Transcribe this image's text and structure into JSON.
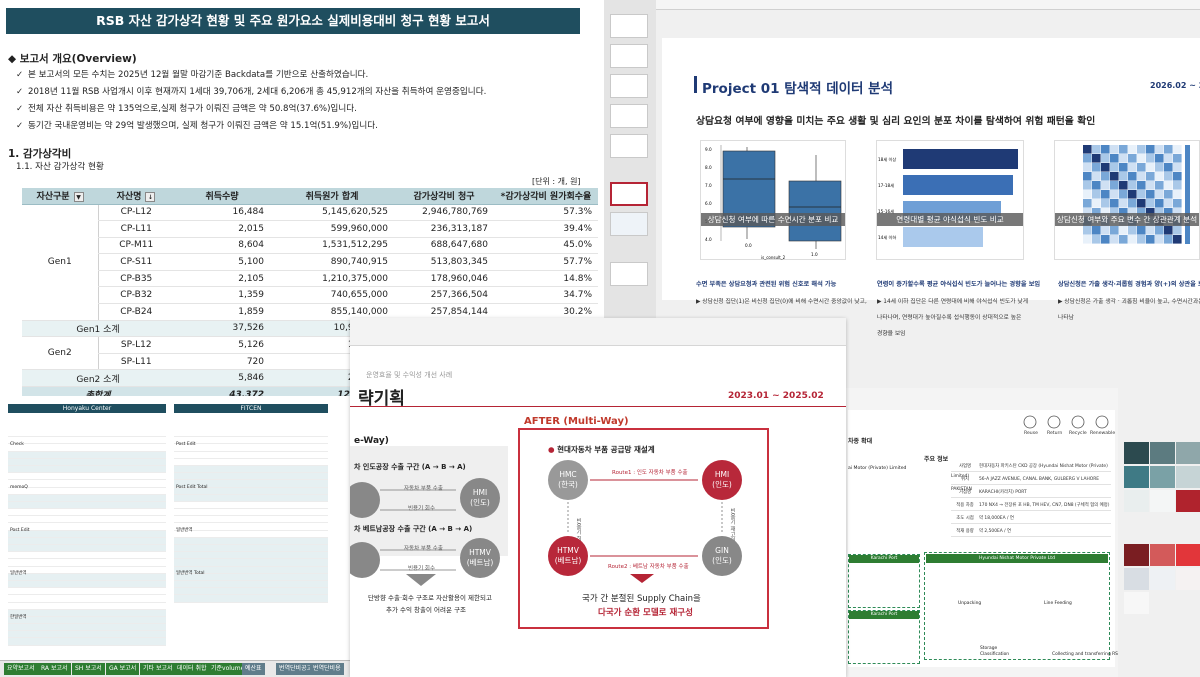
{
  "report": {
    "title": "RSB 자산 감가상각 현황 및 주요 원가요소 실제비용대비 청구 현황 보고서",
    "overview_heading": "◆ 보고서 개요(Overview)",
    "overview_lines": [
      "본 보고서의 모든 수치는 2025년 12월 월말 마감기준 Backdata를 기반으로 산출하였습니다.",
      "2018년 11월 RSB 사업개시 이후 현재까지 1세대 39,706개, 2세대 6,206개 총 45,912개의 자산을 취득하여 운영중입니다.",
      "전체 자산 취득비용은 약 135억으로,실제 청구가 이뤄진 금액은 약 50.8억(37.6%)입니다.",
      "동기간 국내운영비는 약 29억 발생했으며, 실제 청구가 이뤄진 금액은 약 15.1억(51.9%)입니다."
    ],
    "section_heading": "1. 감가상각비",
    "subsection_heading": "1.1. 자산 감가상각 현황",
    "unit_note": "[단위 : 개, 원]",
    "table": {
      "headers": [
        "자산구분",
        "자산명",
        "취득수량",
        "취득원가 합계",
        "감가상각비 청구",
        "*감가상각비 원가회수율"
      ],
      "gen1_label": "Gen1",
      "gen1_rows": [
        [
          "CP-L12",
          "16,484",
          "5,145,620,525",
          "2,946,780,769",
          "57.3%"
        ],
        [
          "CP-L11",
          "2,015",
          "599,960,000",
          "236,313,187",
          "39.4%"
        ],
        [
          "CP-M11",
          "8,604",
          "1,531,512,295",
          "688,647,680",
          "45.0%"
        ],
        [
          "CP-S11",
          "5,100",
          "890,740,915",
          "513,803,345",
          "57.7%"
        ],
        [
          "CP-B35",
          "2,105",
          "1,210,375,000",
          "178,960,046",
          "14.8%"
        ],
        [
          "CP-B32",
          "1,359",
          "740,655,000",
          "257,366,504",
          "34.7%"
        ],
        [
          "CP-B24",
          "1,859",
          "855,140,000",
          "257,854,144",
          "30.2%"
        ]
      ],
      "gen1_subtotal": [
        "Gen1 소계",
        "37,526",
        "10,974,000,"
      ],
      "gen2_label": "Gen2",
      "gen2_rows": [
        [
          "SP-L12",
          "5,126",
          "1,777,69"
        ],
        [
          "SP-L11",
          "720",
          "244,80"
        ]
      ],
      "gen2_subtotal": [
        "Gen2 소계",
        "5,846",
        "2,022,49"
      ],
      "total": [
        "총합계",
        "43,372",
        "12,996,50"
      ]
    }
  },
  "mini_sheet": {
    "left_title": "Honyaku Center",
    "right_title": "FITCEN",
    "left_groups": [
      "Check",
      "Check Total",
      "memoQ",
      "memoQ Total",
      "Post Edit",
      "Post Edit Total",
      "일반번역",
      "일반번역 Total",
      "한일번역",
      "한일번역 Total",
      "TOTAL"
    ],
    "right_groups": [
      "Post Edit",
      "Post Edit Total",
      "일반번역",
      "일반번역 Total",
      "TOTAL"
    ]
  },
  "sheet_tabs": [
    "요약보고서",
    "RA 보고서",
    "SH 보고서",
    "GA 보고서",
    "기타 보고서",
    "데이터 취합",
    "기준volume 추출",
    "예산표",
    "번역단비공고",
    "번역단비용"
  ],
  "slide1": {
    "title": "Project 01 탐색적 데이터 분석",
    "date": "2026.02 ~ 2026",
    "subtitle": "상담요청 여부에 영향을 미치는 주요 생활 및 심리 요인의 분포 차이를 탐색하여 위험 패턴을 확인",
    "card_captions": [
      "상담신청 여부에 따른 수면시간 분포 비교",
      "연령대별 평균 야식섭식 빈도 비교",
      "상담신청 여부와 주요 변수 간 상관관계 분석"
    ],
    "blue_notes": [
      "수면 부족은 상담요청과 관련된 위험 신호로 해석 가능",
      "연령이 증가할수록 평균 야식섭식 빈도가 늘어나는 경향을 보임",
      "상담신청은 가출 생각·괴롭힘 경험과 양(+)의 상관을 보임"
    ],
    "grey_notes": [
      "▶ 상담신청 집단(1)은 비신청 집단(0)에 비해 수면시간 중앙값이 낮고,",
      "▶ 14세 이하 집단은 다른 연령대에 비해 야식섭식 빈도가 낮게",
      "나타나며, 연령대가 높아질수록 섭식행동이 상대적으로 높은",
      "경향을 보임",
      "▶ 상담신청은 가출 생각 · 괴롭힘 비율이 높고, 수면시간과는 낮은 관련",
      "나타남"
    ],
    "chart1_ticks": [
      "9.0",
      "8.0",
      "7.0",
      "6.0",
      "5.0",
      "4.0"
    ],
    "chart1_xlabels": [
      "0.0",
      "1.0"
    ],
    "chart1_xtitle": "is_consult_2",
    "chart2_ticks": [
      "18세 이상",
      "17-18세",
      "15-16세",
      "14세 이하"
    ]
  },
  "slide2": {
    "crumb": "운영효율 및 수익성 개선 사례",
    "title": "략기획",
    "date": "2023.01 ~ 2025.02",
    "after_label": "AFTER (Multi-Way)",
    "section": "현대자동차 부품 공급망 재설계",
    "route1": "Route1 : 인도 자동차 부품 수출",
    "route2": "Route2 : 베트남 자동차 부품 수출",
    "nodes": {
      "hmc": [
        "HMC",
        "(한국)"
      ],
      "hmi": [
        "HMI",
        "(인도)"
      ],
      "htmv": [
        "HTMV",
        "(베트남)"
      ],
      "gin": [
        "GIN",
        "(인도)"
      ]
    },
    "return_label": "빈용기 회수",
    "return_label2": "빈용기 재고이관",
    "return_label3": "빈용기 회수",
    "conclusion_line1": "국가 간 분절된 Supply Chain을",
    "conclusion_line2": "다국가 순환 모델로 재구성",
    "left_head": "e-Way)",
    "left_h1": "차 인도공장 수출 구간 (A → B → A)",
    "left_h2": "차 베트남공장 수출 구간 (A → B → A)",
    "left_small1": "자동차 부품 수출",
    "left_small2": "빈용기 회수",
    "left_hmi": [
      "HMI",
      "(인도)"
    ],
    "left_htmv": [
      "HTMV",
      "(베트남)"
    ],
    "left_note1": "단방향 수출·회수 구조로 자산활용이 제한되고",
    "left_note2": "추가 수익 창출이 어려운 구조"
  },
  "slide3": {
    "icon_labels": [
      "Reuse",
      "Return",
      "Recycle",
      "Renewable"
    ],
    "heading": "차종 확대",
    "info_heading": "주요 정보",
    "company": "ai Motor (Private) Limited",
    "rows": [
      [
        "사업명",
        "현대자동차 파키스탄 CKD 공장 (Hyundai Nishat Motor (Private) Limited)"
      ],
      [
        "위치",
        "56-A JAZZ AVENUE, CANAL BANK, GULBERG V LAHORE PAKISTAN"
      ],
      [
        "거점명",
        "KARACHI(카라치) PORT"
      ],
      [
        "적용 차종",
        "170 NX4 → 전장류 포 HB, TM HEV, CN7, DN8 (구체적 협의 예정)"
      ],
      [
        "초도 시점",
        "약 18,000EA / 연"
      ],
      [
        "적재 용량",
        "약 2,500EA / 연"
      ]
    ],
    "flow_title": "Hyundai Nishat Motor Private Ltd",
    "port1": "Karachi Port",
    "port2": "Karachi Port",
    "steps": [
      "Unpacking",
      "Line Feeding",
      "Storage",
      "Classification",
      "Collecting and transferring RSB"
    ]
  },
  "palette": {
    "colors": [
      "#2c4a4f",
      "#5c7b80",
      "#8fa7aa",
      "#3f7a85",
      "#7aa1a6",
      "#c6d4d6",
      "#e9eeee",
      "#f4f6f6",
      "#b0232d",
      "#7a1e22",
      "#d35a5a",
      "#e2363a",
      "#d8dde3",
      "#eef1f4",
      "#f5f2f2",
      "#f7f7f7"
    ]
  }
}
